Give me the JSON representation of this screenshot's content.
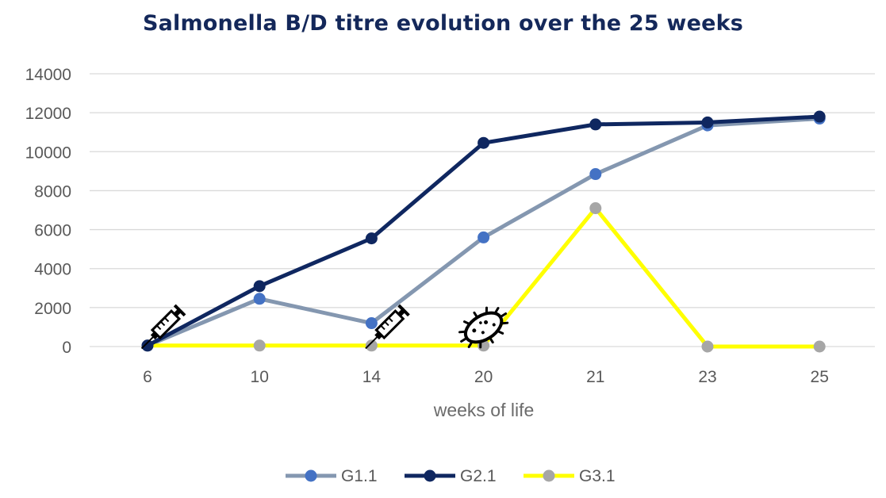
{
  "chart_data": {
    "type": "line",
    "title": "Salmonella B/D titre evolution over the 25 weeks",
    "xlabel": "weeks of life",
    "ylabel": "",
    "categories": [
      "6",
      "10",
      "14",
      "20",
      "21",
      "23",
      "25"
    ],
    "ylim": [
      0,
      14000
    ],
    "yticks": [
      0,
      2000,
      4000,
      6000,
      8000,
      10000,
      12000,
      14000
    ],
    "grid": true,
    "legend": "bottom",
    "series": [
      {
        "name": "G1.1",
        "values": [
          50,
          2450,
          1200,
          5600,
          8850,
          11350,
          11700
        ],
        "line_color": "#8497b0",
        "marker_color": "#4472c4"
      },
      {
        "name": "G2.1",
        "values": [
          50,
          3100,
          5550,
          10450,
          11400,
          11500,
          11800
        ],
        "line_color": "#0f2760",
        "marker_color": "#0f2760"
      },
      {
        "name": "G3.1",
        "values": [
          50,
          50,
          50,
          50,
          7100,
          0,
          0
        ],
        "line_color": "#ffff00",
        "marker_color": "#a6a6a6"
      }
    ],
    "annotations": [
      {
        "icon": "syringe-icon",
        "x": "6"
      },
      {
        "icon": "syringe-icon",
        "x": "14"
      },
      {
        "icon": "bacteria-icon",
        "x": "20"
      }
    ]
  }
}
